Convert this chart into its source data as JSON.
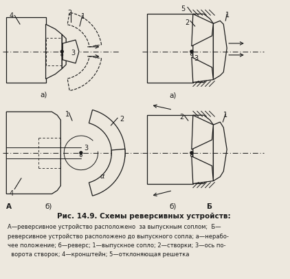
{
  "title": "Рис. 14.9. Схемы реверсивных устройств:",
  "caption_line1": "А—реверсивное устройство расположено  за выпускным соплом;  Б—",
  "caption_line2": "реверсивное устройство расположено до выпускного сопла; а—нерабо-",
  "caption_line3": "чее положение; б—реверс; 1—выпускное сопло; 2—створки; 3—ось по-",
  "caption_line4": "  ворота створок; 4—кронштейн; 5—отклоняющая решетка",
  "bg_color": "#ede8de",
  "line_color": "#1a1a1a"
}
